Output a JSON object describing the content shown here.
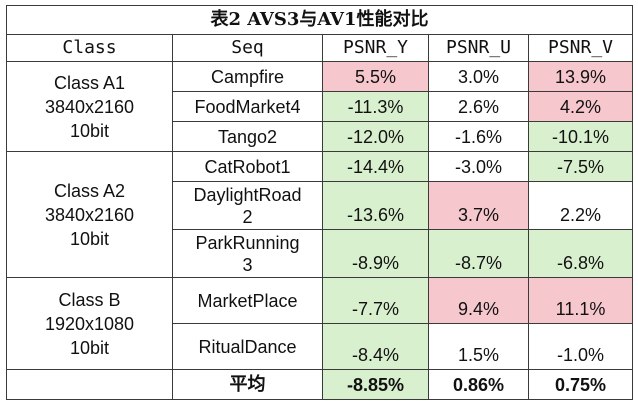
{
  "title": "表2 AVS3与AV1性能对比",
  "headers": {
    "class": "Class",
    "seq": "Seq",
    "psnr_y": "PSNR_Y",
    "psnr_u": "PSNR_U",
    "psnr_v": "PSNR_V"
  },
  "groups": [
    {
      "name": "Class A1",
      "resolution": "3840x2160",
      "depth": "10bit",
      "rows": [
        {
          "seq": "Campfire",
          "y": "5.5%",
          "u": "3.0%",
          "v": "13.9%"
        },
        {
          "seq": "FoodMarket4",
          "y": "-11.3%",
          "u": "2.6%",
          "v": "4.2%"
        },
        {
          "seq": "Tango2",
          "y": "-12.0%",
          "u": "-1.6%",
          "v": "-10.1%"
        }
      ]
    },
    {
      "name": "Class A2",
      "resolution": "3840x2160",
      "depth": "10bit",
      "rows": [
        {
          "seq": "CatRobot1",
          "y": "-14.4%",
          "u": "-3.0%",
          "v": "-7.5%"
        },
        {
          "seq_line1": "DaylightRoad",
          "seq_line2": "2",
          "y": "-13.6%",
          "u": "3.7%",
          "v": "2.2%"
        },
        {
          "seq_line1": "ParkRunning",
          "seq_line2": "3",
          "y": "-8.9%",
          "u": "-8.7%",
          "v": "-6.8%"
        }
      ]
    },
    {
      "name": "Class B",
      "resolution": "1920x1080",
      "depth": "10bit",
      "rows": [
        {
          "seq": "MarketPlace",
          "y": "-7.7%",
          "u": "9.4%",
          "v": "11.1%"
        },
        {
          "seq": "RitualDance",
          "y": "-8.4%",
          "u": "1.5%",
          "v": "-1.0%"
        }
      ]
    }
  ],
  "average": {
    "label": "平均",
    "y": "-8.85%",
    "u": "0.86%",
    "v": "0.75%"
  },
  "colors": {
    "positive": "#f6c8ce",
    "negative": "#d9f0cf",
    "border": "#3a3a3a"
  }
}
